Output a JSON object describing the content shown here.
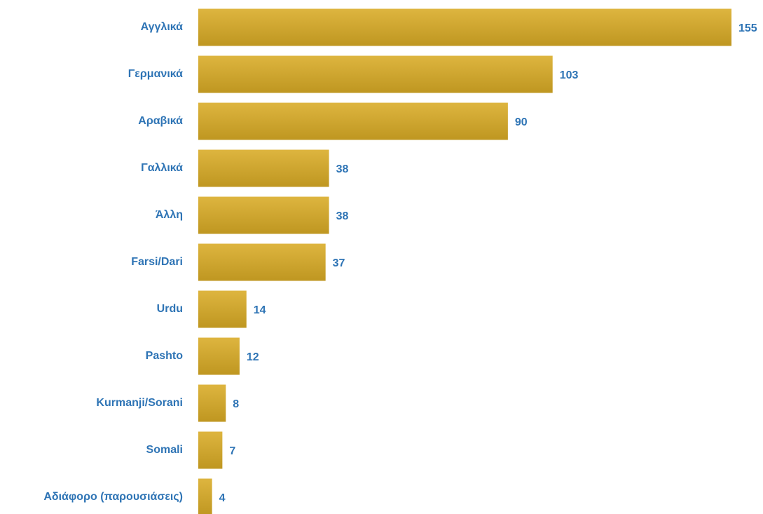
{
  "chart_data": {
    "type": "bar",
    "orientation": "horizontal",
    "categories": [
      "Αγγλικά",
      "Γερμανικά",
      "Αραβικά",
      "Γαλλικά",
      "Άλλη",
      "Farsi/Dari",
      "Urdu",
      "Pashto",
      "Kurmanji/Sorani",
      "Somali",
      "Αδιάφορο (παρουσιάσεις)"
    ],
    "values": [
      155,
      103,
      90,
      38,
      38,
      37,
      14,
      12,
      8,
      7,
      4
    ],
    "color": "#d9ab25",
    "label_color": "#2e74b5"
  }
}
